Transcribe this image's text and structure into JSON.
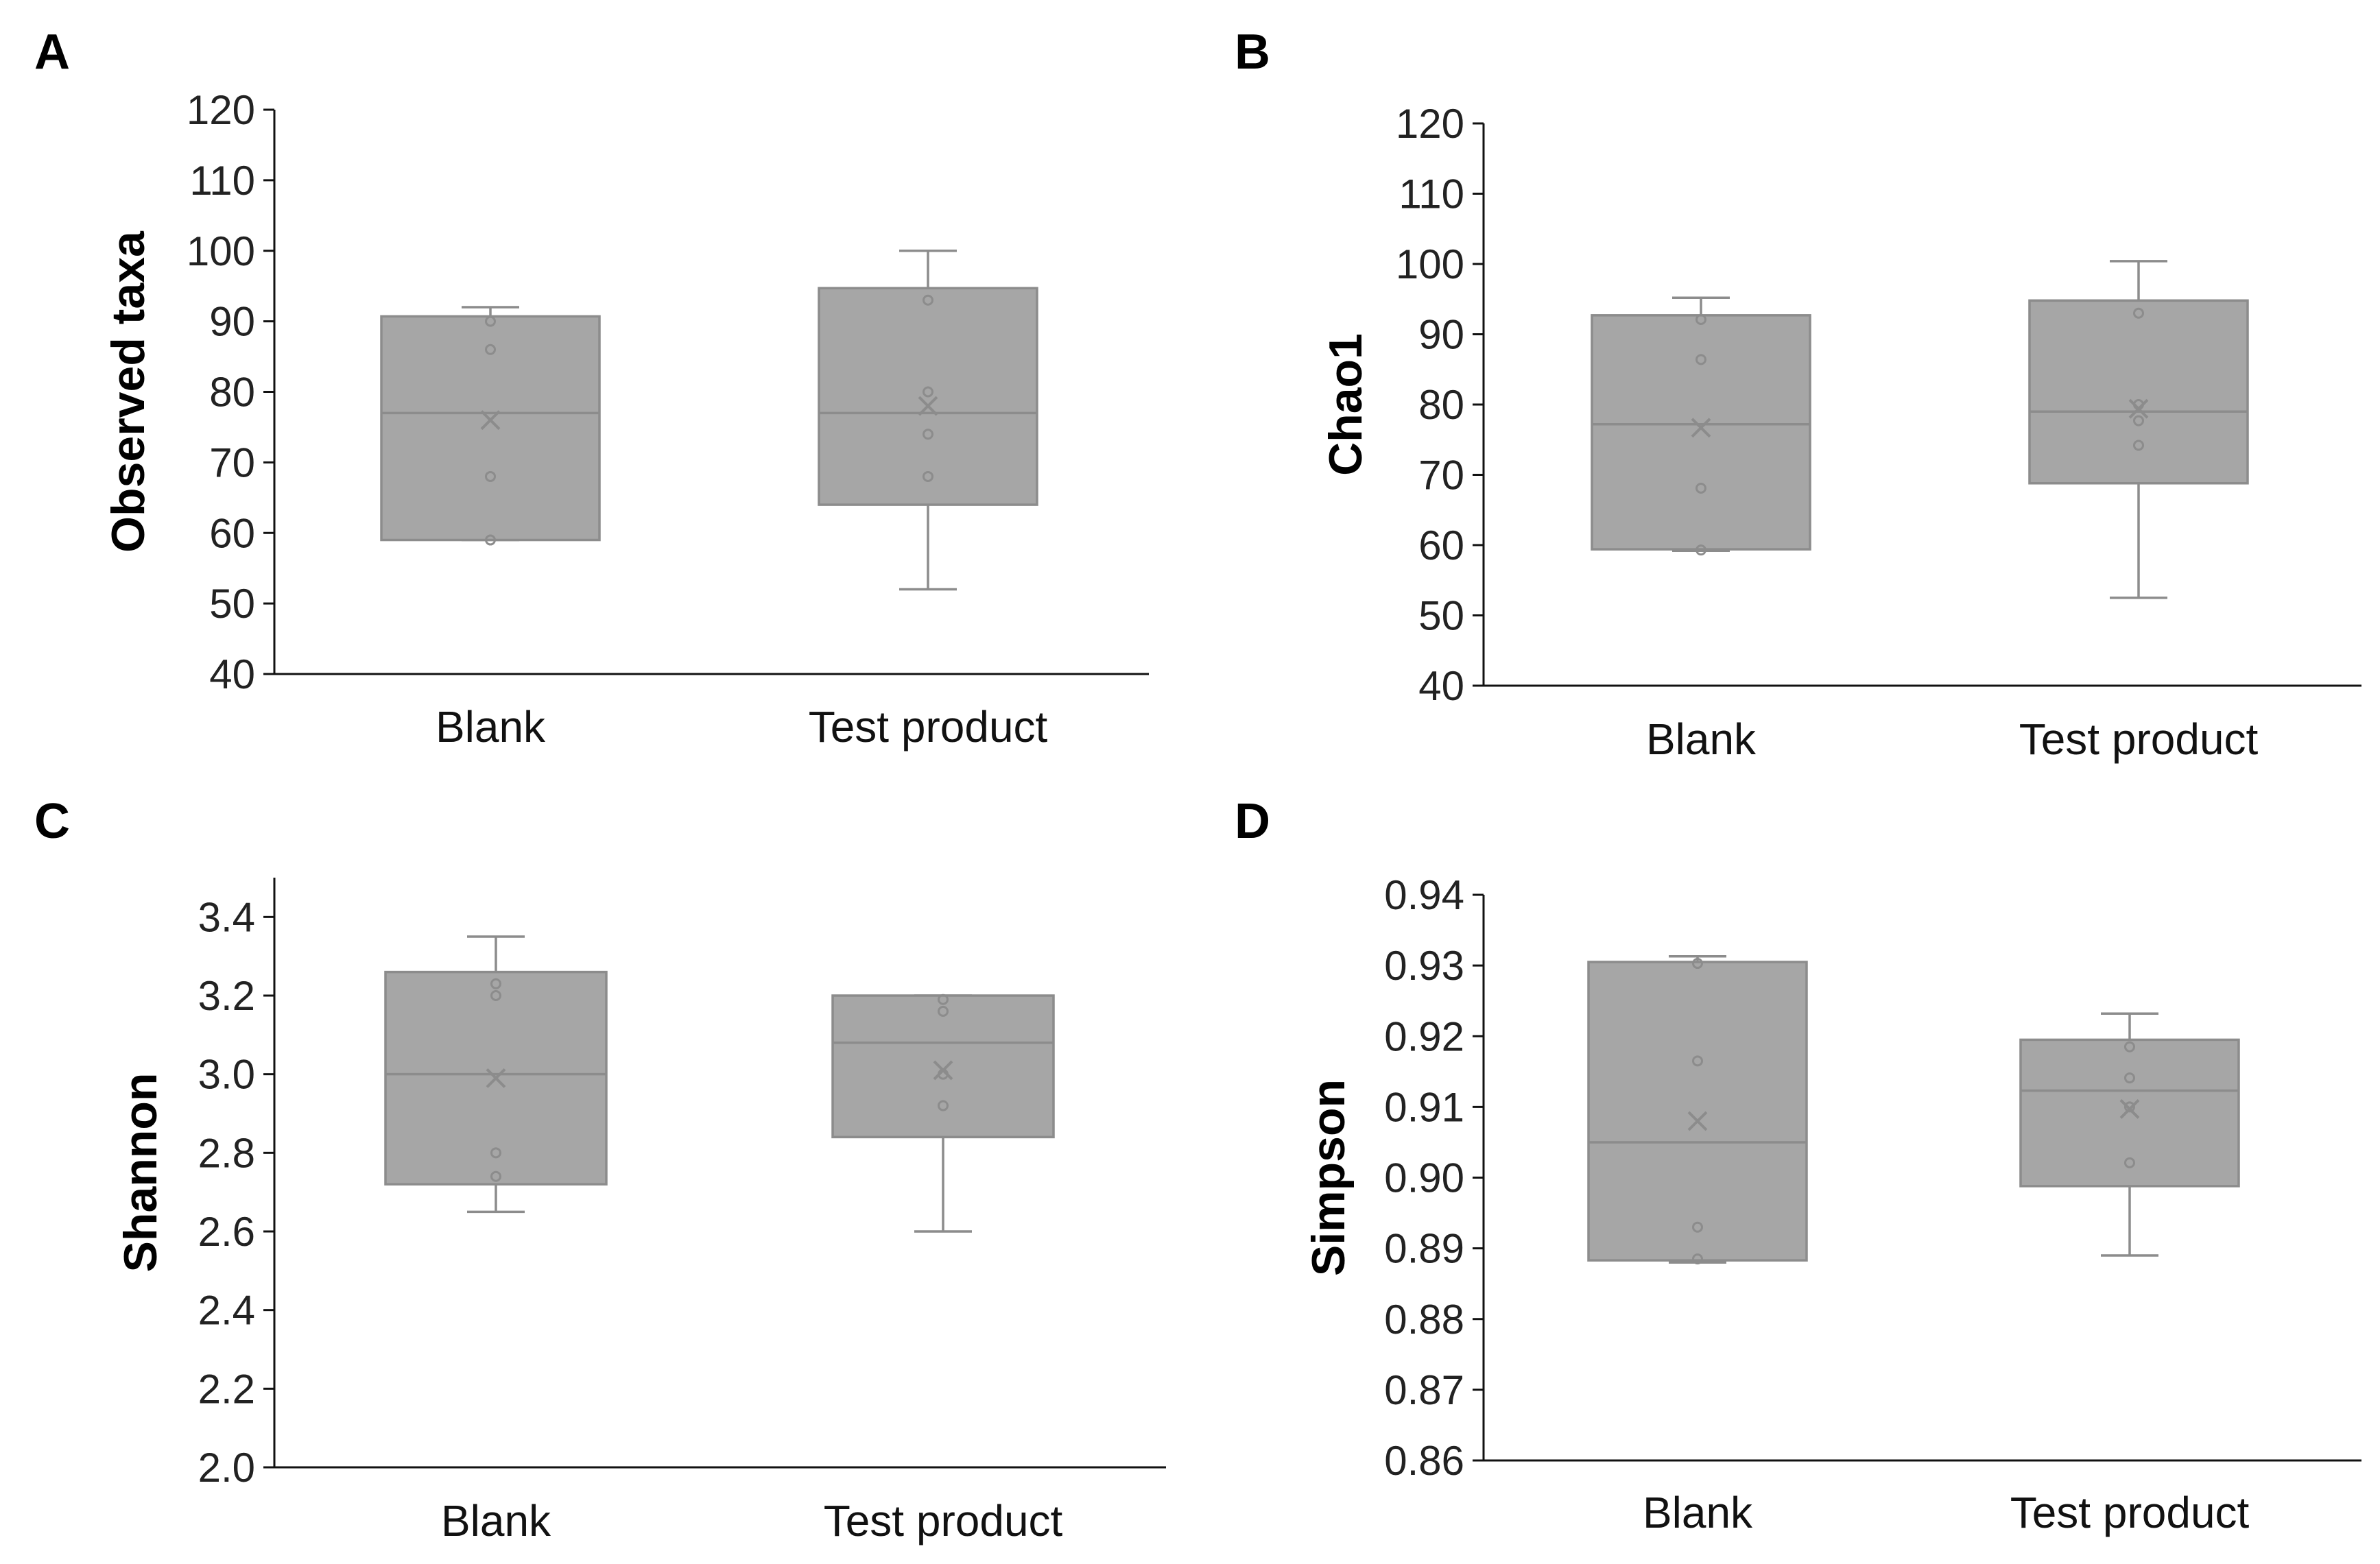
{
  "colors": {
    "box_fill": "#a6a6a6",
    "box_stroke": "#8c8c8c",
    "points": "#8c8c8c",
    "axis": "#111111"
  },
  "chart_data": [
    {
      "type": "box",
      "panel": "A",
      "ylabel": "Observed taxa",
      "ylim": [
        40,
        120
      ],
      "ystep": 10,
      "decimals": 0,
      "categories": [
        "Blank",
        "Test product"
      ],
      "boxes": [
        {
          "name": "Blank",
          "min": 59,
          "q1": 59,
          "median": 77,
          "q3": 90.7,
          "max": 92,
          "mean": 76,
          "points": [
            59,
            68,
            86,
            90
          ]
        },
        {
          "name": "Test product",
          "min": 52,
          "q1": 64,
          "median": 77,
          "q3": 94.7,
          "max": 100,
          "mean": 78,
          "points": [
            68,
            74,
            80,
            93
          ]
        }
      ]
    },
    {
      "type": "box",
      "panel": "B",
      "ylabel": "Chao1",
      "ylim": [
        40,
        120
      ],
      "ystep": 10,
      "decimals": 0,
      "categories": [
        "Blank",
        "Test product"
      ],
      "boxes": [
        {
          "name": "Blank",
          "min": 59.2,
          "q1": 59.4,
          "median": 77.2,
          "q3": 92.7,
          "max": 95.2,
          "mean": 76.7,
          "points": [
            59.3,
            68.1,
            86.4,
            92.1
          ]
        },
        {
          "name": "Test product",
          "min": 52.5,
          "q1": 68.8,
          "median": 79,
          "q3": 94.8,
          "max": 100.4,
          "mean": 79.4,
          "points": [
            74.2,
            77.7,
            80,
            93
          ]
        }
      ]
    },
    {
      "type": "box",
      "panel": "C",
      "ylabel": "Shannon",
      "ylim": [
        2.0,
        3.5
      ],
      "ystep": 0.2,
      "ymaxTick": 3.4,
      "decimals": 1,
      "categories": [
        "Blank",
        "Test product"
      ],
      "boxes": [
        {
          "name": "Blank",
          "min": 2.65,
          "q1": 2.72,
          "median": 3.0,
          "q3": 3.26,
          "max": 3.35,
          "mean": 2.99,
          "points": [
            2.74,
            2.8,
            3.2,
            3.23
          ]
        },
        {
          "name": "Test product",
          "min": 2.6,
          "q1": 2.84,
          "median": 3.08,
          "q3": 3.2,
          "max": 3.2,
          "mean": 3.01,
          "points": [
            2.92,
            3.0,
            3.16,
            3.19
          ]
        }
      ]
    },
    {
      "type": "box",
      "panel": "D",
      "ylabel": "Simpson",
      "ylim": [
        0.86,
        0.94
      ],
      "ystep": 0.01,
      "decimals": 2,
      "categories": [
        "Blank",
        "Test product"
      ],
      "boxes": [
        {
          "name": "Blank",
          "min": 0.888,
          "q1": 0.8883,
          "median": 0.905,
          "q3": 0.9305,
          "max": 0.9313,
          "mean": 0.908,
          "points": [
            0.8885,
            0.893,
            0.9165,
            0.9303
          ]
        },
        {
          "name": "Test product",
          "min": 0.889,
          "q1": 0.8988,
          "median": 0.9123,
          "q3": 0.9195,
          "max": 0.9232,
          "mean": 0.9097,
          "points": [
            0.9021,
            0.91,
            0.9141,
            0.9185
          ]
        }
      ]
    }
  ]
}
